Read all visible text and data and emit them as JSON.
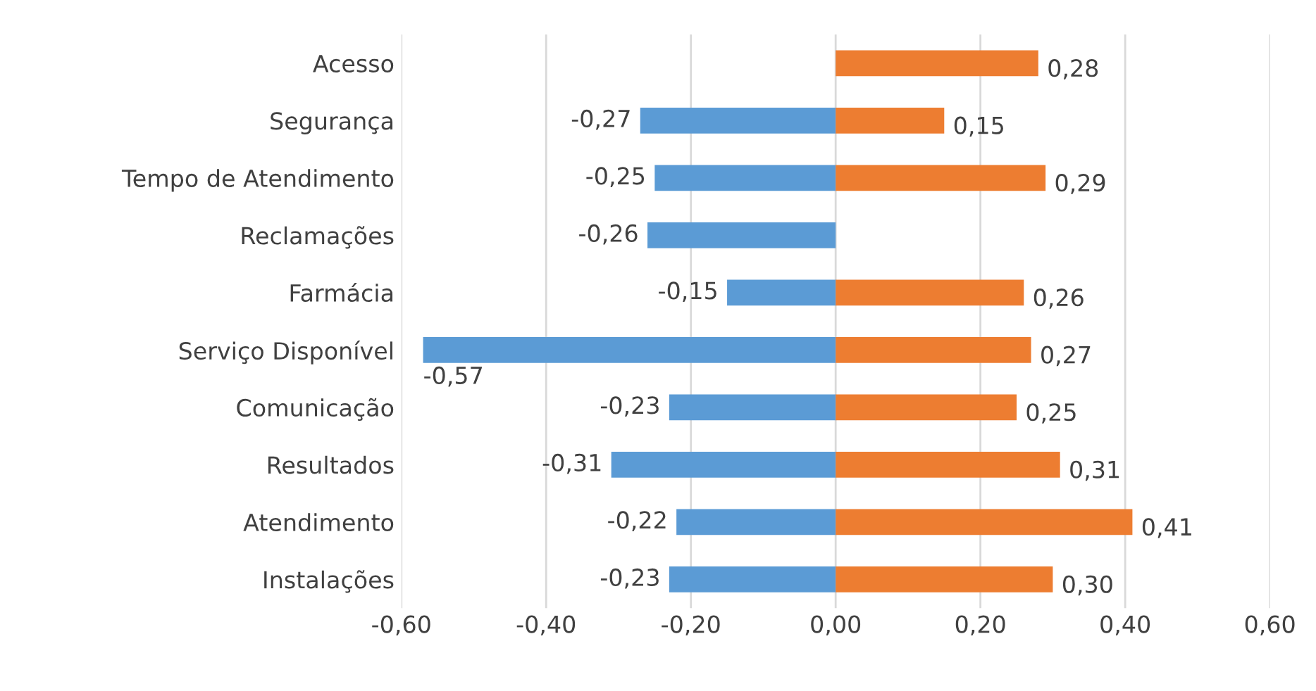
{
  "chart_data": {
    "type": "bar",
    "orientation": "horizontal",
    "stacked": true,
    "categories": [
      "Acesso",
      "Segurança",
      "Tempo de Atendimento",
      "Reclamações",
      "Farmácia",
      "Serviço Disponível",
      "Comunicação",
      "Resultados",
      "Atendimento",
      "Instalações"
    ],
    "series": [
      {
        "color": "#5b9bd5",
        "values": [
          null,
          -0.27,
          -0.25,
          -0.26,
          -0.15,
          -0.57,
          -0.23,
          -0.31,
          -0.22,
          -0.23
        ],
        "value_labels": [
          null,
          "-0,27",
          "-0,25",
          "-0,26",
          "-0,15",
          "-0,57",
          "-0,23",
          "-0,31",
          "-0,22",
          "-0,23"
        ]
      },
      {
        "color": "#ed7d31",
        "values": [
          0.28,
          0.15,
          0.29,
          null,
          0.26,
          0.27,
          0.25,
          0.31,
          0.41,
          0.3
        ],
        "value_labels": [
          "0,28",
          "0,15",
          "0,29",
          null,
          "0,26",
          "0,27",
          "0,25",
          "0,31",
          "0,41",
          "0,30"
        ]
      }
    ],
    "xlim": [
      -0.6,
      0.6
    ],
    "xticks": [
      {
        "value": -0.6,
        "label": "-0,60"
      },
      {
        "value": -0.4,
        "label": "-0,40"
      },
      {
        "value": -0.2,
        "label": "-0,20"
      },
      {
        "value": 0,
        "label": "0,00"
      },
      {
        "value": 0.2,
        "label": "0,20"
      },
      {
        "value": 0.4,
        "label": "0,40"
      },
      {
        "value": 0.6,
        "label": "0,60"
      }
    ],
    "grid": "x"
  }
}
